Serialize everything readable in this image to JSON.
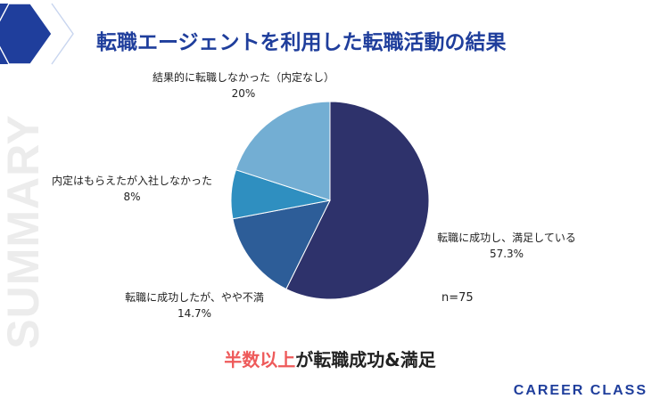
{
  "slide": {
    "title": "転職エージェントを利用した転職活動の結果",
    "side_word": "SUMMARY",
    "n_label": "n=75",
    "summary_highlight": "半数以上",
    "summary_rest": "が転職成功&満足",
    "brand": "CAREER CLASS"
  },
  "colors": {
    "title": "#1f3e9c",
    "highlight": "#ee5a5a",
    "corner_dark": "#1f3e9c",
    "corner_light": "#c8d5ef"
  },
  "chart_data": {
    "type": "pie",
    "title": "",
    "slices": [
      {
        "label": "転職に成功し、満足している",
        "value": 57.3,
        "value_label": "57.3%",
        "color": "#2e326b"
      },
      {
        "label": "転職に成功したが、やや不満",
        "value": 14.7,
        "value_label": "14.7%",
        "color": "#2d5d98"
      },
      {
        "label": "内定はもらえたが入社しなかった",
        "value": 8,
        "value_label": "8%",
        "color": "#2f8fc0"
      },
      {
        "label": "結果的に転職しなかった（内定なし）",
        "value": 20,
        "value_label": "20%",
        "color": "#73aed3"
      }
    ],
    "start_angle": "top",
    "direction": "clockwise"
  }
}
